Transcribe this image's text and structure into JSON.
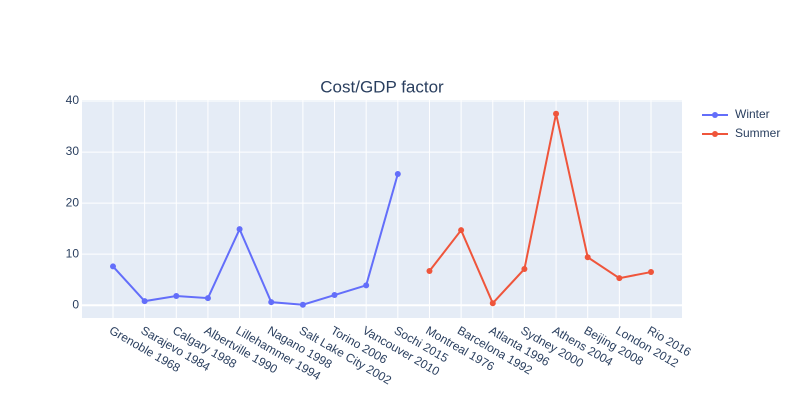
{
  "chart_data": {
    "type": "line",
    "title": "Cost/GDP factor",
    "categories": [
      "Grenoble 1968",
      "Sarajevo 1984",
      "Calgary 1988",
      "Albertville 1990",
      "Lillehammer 1994",
      "Nagano 1998",
      "Salt Lake City 2002",
      "Torino 2006",
      "Vancouver 2010",
      "Sochi 2015",
      "Montreal  1976",
      "Barcelona 1992",
      "Atlanta 1996",
      "Sydney 2000",
      "Athens 2004",
      "Beijing 2008",
      "London 2012",
      "Rio 2016"
    ],
    "series": [
      {
        "name": "Winter",
        "color": "#636efa",
        "values": [
          7.6,
          0.8,
          1.8,
          1.4,
          14.9,
          0.6,
          0.1,
          2.0,
          3.9,
          25.7,
          null,
          null,
          null,
          null,
          null,
          null,
          null,
          null
        ]
      },
      {
        "name": "Summer",
        "color": "#ef553b",
        "values": [
          null,
          null,
          null,
          null,
          null,
          null,
          null,
          null,
          null,
          null,
          6.7,
          14.7,
          0.4,
          7.1,
          37.5,
          9.4,
          5.3,
          6.5
        ]
      }
    ],
    "ylim": [
      -2.5,
      40.2
    ],
    "yticks": [
      0,
      10,
      20,
      30,
      40
    ],
    "grid": true,
    "legend": "right"
  }
}
